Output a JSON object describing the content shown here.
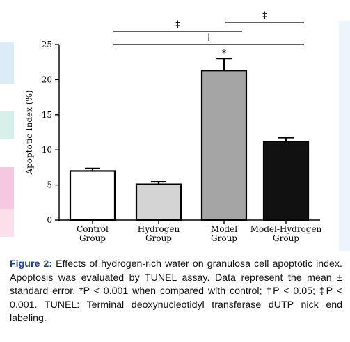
{
  "chart_data": {
    "type": "bar",
    "categories": [
      [
        "Control",
        "Group"
      ],
      [
        "Hydrogen",
        "Group"
      ],
      [
        "Model",
        "Group"
      ],
      [
        "Model-Hydrogen",
        "Group"
      ]
    ],
    "values": [
      7.0,
      5.1,
      21.3,
      11.2
    ],
    "errors": [
      0.35,
      0.35,
      1.7,
      0.55
    ],
    "bar_colors": [
      "#ffffff",
      "#d4d4d4",
      "#a5a5a5",
      "#111111"
    ],
    "ylabel": "Apoptotic Index (%)",
    "ylim": [
      0,
      25
    ],
    "yticks": [
      "0",
      "5",
      "10",
      "15",
      "20",
      "25"
    ],
    "annotations": [
      {
        "label": "*",
        "type": "star",
        "over": 2
      },
      {
        "label": "‡",
        "type": "bracket",
        "from": 0,
        "to": 2
      },
      {
        "label": "‡",
        "type": "bracket",
        "from": 2,
        "to": 3
      },
      {
        "label": "†",
        "type": "bracket",
        "from": 0,
        "to": 3
      }
    ],
    "grid": false
  },
  "caption": {
    "heading": "Figure 2:",
    "text": "Effects of hydrogen-rich water on granulosa cell apoptotic index. Apoptosis was evaluated by TUNEL assay. Data represent the mean ± standard error. *P < 0.001 when compared with control; †P < 0.05; ‡P < 0.001. TUNEL: Terminal deoxynucleotidyl transferase dUTP nick end labeling."
  }
}
